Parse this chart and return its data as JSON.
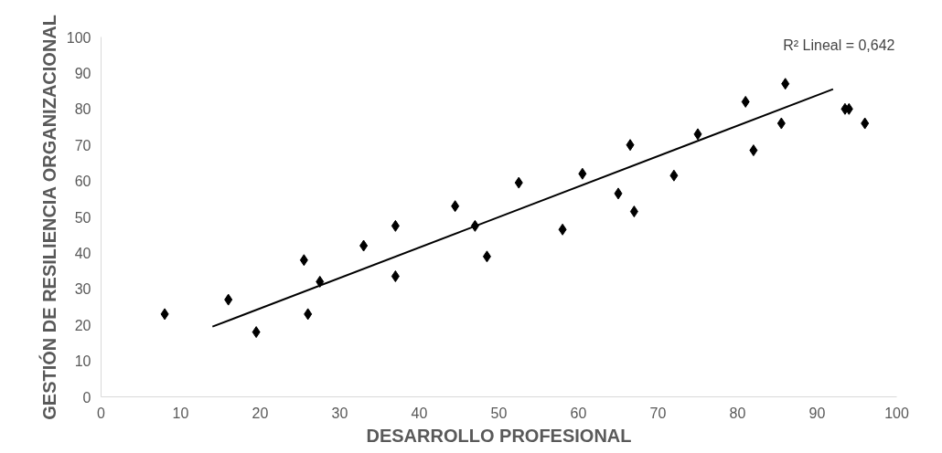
{
  "chart_data": {
    "type": "scatter",
    "xlabel": "DESARROLLO PROFESIONAL",
    "ylabel": "GESTIÓN DE RESILIENCIA ORGANIZACIONAL",
    "xlim": [
      0,
      100
    ],
    "ylim": [
      0,
      100
    ],
    "xticks": [
      0,
      10,
      20,
      30,
      40,
      50,
      60,
      70,
      80,
      90,
      100
    ],
    "yticks": [
      0,
      10,
      20,
      30,
      40,
      50,
      60,
      70,
      80,
      90,
      100
    ],
    "grid": false,
    "marker": "diamond",
    "annotations": [
      "R² Lineal = 0,642"
    ],
    "series": [
      {
        "color": "#000000",
        "x": [
          8,
          16,
          19.5,
          25.5,
          26,
          27.5,
          33,
          37,
          37,
          44.5,
          47,
          48.5,
          52.5,
          58,
          60.5,
          65,
          66.5,
          67,
          72,
          75,
          81,
          82,
          85.5,
          86,
          93.5,
          94,
          96
        ],
        "values": [
          23,
          27,
          18,
          38,
          23,
          32,
          42,
          47.5,
          33.5,
          53,
          47.5,
          39,
          59.5,
          46.5,
          62,
          56.5,
          70,
          51.5,
          61.5,
          73,
          82,
          68.5,
          76,
          87,
          80,
          80,
          76
        ]
      },
      {
        "type": "line",
        "marker": "none",
        "color": "#000000",
        "x": [
          14,
          92
        ],
        "values": [
          19.5,
          85.5
        ]
      }
    ]
  }
}
